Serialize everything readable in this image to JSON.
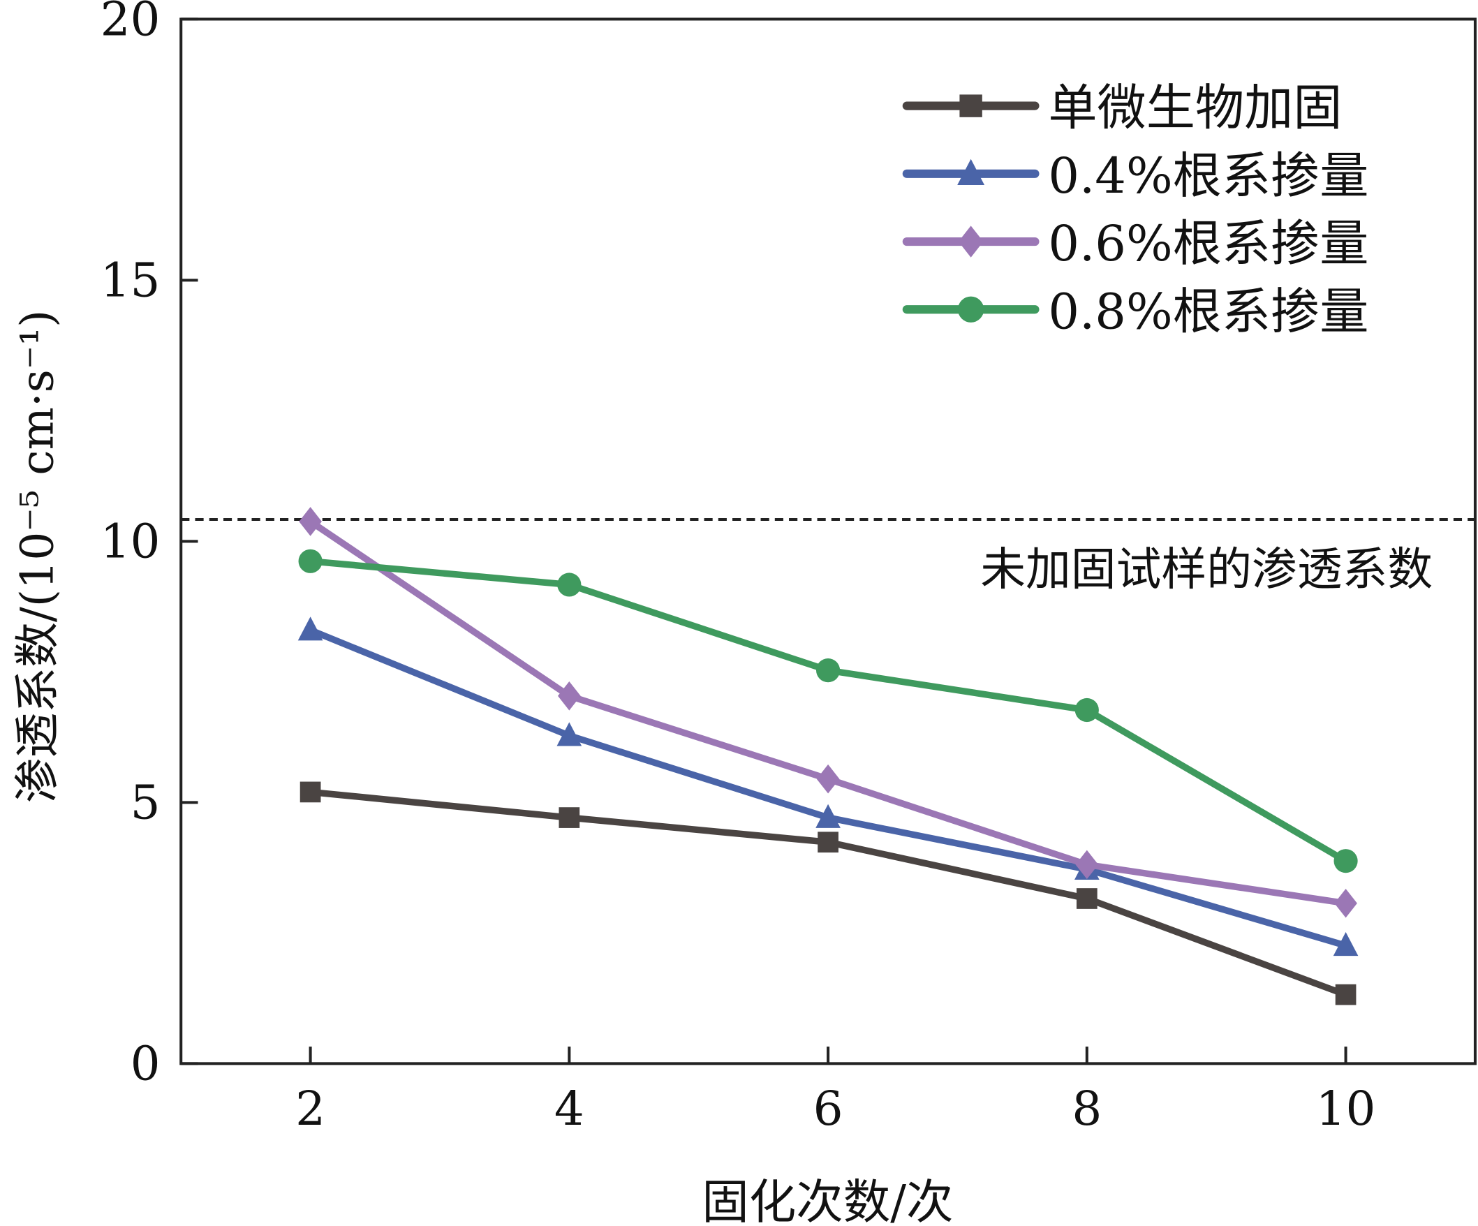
{
  "chart_data": {
    "type": "line",
    "title": "",
    "xlabel": "固化次数/次",
    "ylabel": "渗透系数/(10⁻⁵ cm·s⁻¹)",
    "x": [
      2,
      4,
      6,
      8,
      10
    ],
    "xlim": [
      1,
      11
    ],
    "ylim": [
      0,
      20
    ],
    "xticks": [
      "2",
      "4",
      "6",
      "8",
      "10"
    ],
    "yticks": [
      "0",
      "5",
      "10",
      "15",
      "20"
    ],
    "grid": false,
    "legend_position": "top-right",
    "series": [
      {
        "name": "单微生物加固",
        "marker": "square",
        "color": "#4a4442",
        "values": [
          5.2,
          4.71,
          4.24,
          3.16,
          1.32
        ]
      },
      {
        "name": "0.4%根系掺量",
        "marker": "triangle",
        "color": "#4a64a8",
        "values": [
          8.3,
          6.28,
          4.71,
          3.72,
          2.26
        ]
      },
      {
        "name": "0.6%根系掺量",
        "marker": "diamond",
        "color": "#9b77b5",
        "values": [
          10.38,
          7.04,
          5.45,
          3.81,
          3.07
        ]
      },
      {
        "name": "0.8%根系掺量",
        "marker": "circle",
        "color": "#3f9a5e",
        "values": [
          9.62,
          9.17,
          7.53,
          6.77,
          3.88
        ]
      }
    ],
    "reference_line": {
      "label": "未加固试样的渗透系数",
      "value": 10.42,
      "style": "dashed"
    }
  }
}
